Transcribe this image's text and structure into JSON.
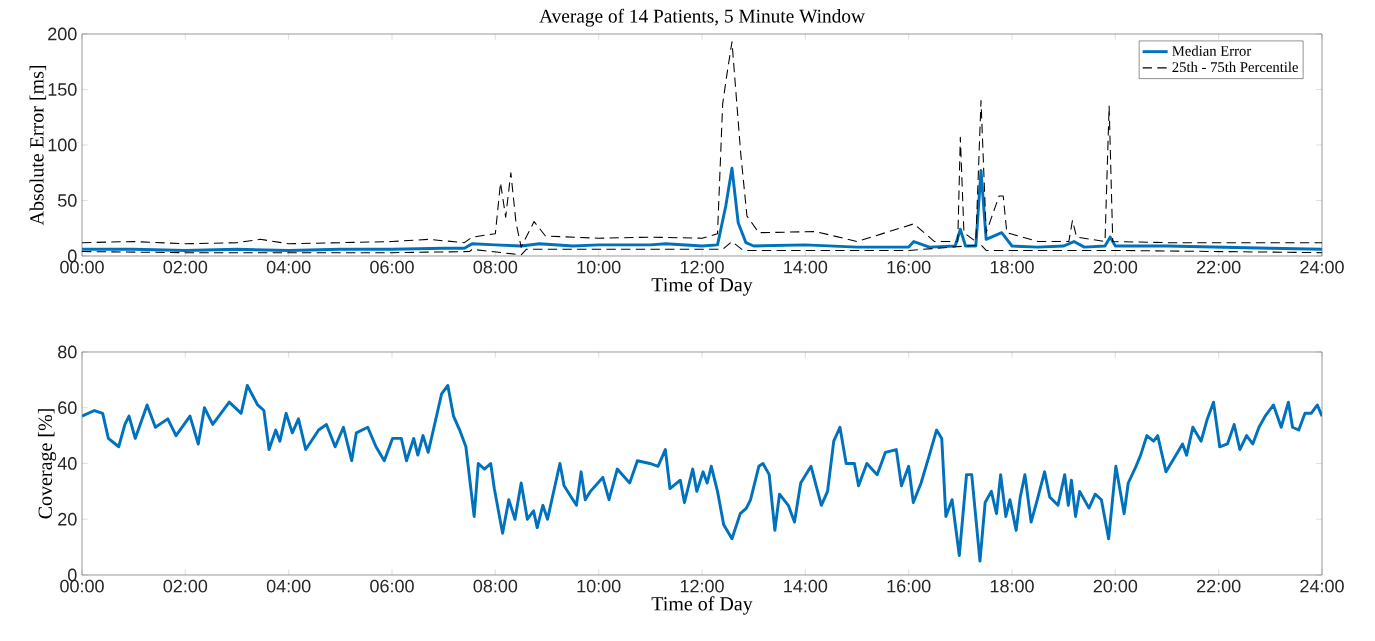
{
  "chart_data": [
    {
      "type": "line",
      "title": "Average of 14 Patients, 5 Minute Window",
      "xlabel": "Time of Day",
      "ylabel": "Absolute Error [ms]",
      "xlim": [
        0,
        24
      ],
      "ylim": [
        0,
        200
      ],
      "xticks": [
        {
          "value": 0,
          "label": "00:00"
        },
        {
          "value": 2,
          "label": "02:00"
        },
        {
          "value": 4,
          "label": "04:00"
        },
        {
          "value": 6,
          "label": "06:00"
        },
        {
          "value": 8,
          "label": "08:00"
        },
        {
          "value": 10,
          "label": "10:00"
        },
        {
          "value": 12,
          "label": "12:00"
        },
        {
          "value": 14,
          "label": "14:00"
        },
        {
          "value": 16,
          "label": "16:00"
        },
        {
          "value": 18,
          "label": "18:00"
        },
        {
          "value": 20,
          "label": "20:00"
        },
        {
          "value": 22,
          "label": "22:00"
        },
        {
          "value": 24,
          "label": "24:00"
        }
      ],
      "yticks": [
        0,
        50,
        100,
        150,
        200
      ],
      "legend": "top right",
      "series": [
        {
          "name": "Median Error",
          "color": "#0072bd",
          "line_style": "solid",
          "x": [
            0,
            1,
            2,
            3,
            4,
            5,
            6,
            7,
            7.4,
            7.55,
            8,
            8.5,
            8.85,
            9.5,
            10,
            11,
            11.3,
            12,
            12.3,
            12.46,
            12.58,
            12.7,
            12.85,
            13,
            14,
            15,
            16,
            16.1,
            16.4,
            16.9,
            17.0,
            17.1,
            17.3,
            17.4,
            17.5,
            17.8,
            18,
            18.5,
            19,
            19.2,
            19.4,
            19.8,
            19.9,
            20,
            21,
            22,
            23,
            24
          ],
          "values": [
            6,
            6,
            5,
            6,
            5,
            6,
            6,
            7,
            7,
            11,
            10,
            9,
            11,
            9,
            10,
            10,
            11,
            9,
            10,
            45,
            79,
            30,
            12,
            9,
            10,
            8,
            8,
            13,
            8,
            9,
            24,
            9,
            9,
            77,
            15,
            21,
            9,
            8,
            9,
            13,
            8,
            9,
            17,
            9,
            9,
            8,
            7,
            6
          ]
        },
        {
          "name": "25th - 75th Percentile",
          "color": "#000000",
          "line_style": "dashed",
          "x": [
            0,
            1,
            2,
            3,
            3.45,
            4,
            5,
            6,
            6.7,
            7.4,
            7.55,
            8.0,
            8.1,
            8.2,
            8.3,
            8.4,
            8.5,
            8.75,
            8.97,
            10,
            11,
            12,
            12.3,
            12.4,
            12.48,
            12.58,
            12.75,
            12.87,
            13.1,
            14.2,
            15,
            16.1,
            16.5,
            16.95,
            17.0,
            17.07,
            17.3,
            17.4,
            17.5,
            17.75,
            17.83,
            17.9,
            18.5,
            19.1,
            19.17,
            19.25,
            19.8,
            19.88,
            19.95,
            21,
            22,
            23,
            24
          ],
          "values": [
            12,
            13,
            11,
            12,
            15,
            11,
            12,
            13,
            15,
            12,
            17,
            20,
            66,
            35,
            75,
            30,
            8,
            31,
            18,
            16,
            17,
            16,
            20,
            137,
            163,
            193,
            92,
            36,
            21,
            22,
            13,
            29,
            13,
            13,
            107,
            21,
            13,
            140,
            21,
            54,
            54,
            21,
            13,
            13,
            32,
            17,
            13,
            135,
            13,
            12,
            12,
            12,
            12
          ]
        },
        {
          "color": "#000000",
          "line_style": "dashed",
          "x": [
            0,
            2,
            4,
            6,
            7.5,
            7.55,
            8.5,
            8.6,
            12.4,
            12.58,
            12.8,
            16,
            17.4,
            17.5,
            20,
            24
          ],
          "values": [
            4,
            3,
            3,
            3,
            4,
            6,
            1,
            6,
            6,
            13,
            5,
            5,
            10,
            5,
            5,
            3
          ]
        }
      ]
    },
    {
      "type": "line",
      "xlabel": "Time of Day",
      "ylabel": "Coverage [%]",
      "xlim": [
        0,
        24
      ],
      "ylim": [
        0,
        80
      ],
      "xticks": [
        {
          "value": 0,
          "label": "00:00"
        },
        {
          "value": 2,
          "label": "02:00"
        },
        {
          "value": 4,
          "label": "04:00"
        },
        {
          "value": 6,
          "label": "06:00"
        },
        {
          "value": 8,
          "label": "08:00"
        },
        {
          "value": 10,
          "label": "10:00"
        },
        {
          "value": 12,
          "label": "12:00"
        },
        {
          "value": 14,
          "label": "14:00"
        },
        {
          "value": 16,
          "label": "16:00"
        },
        {
          "value": 18,
          "label": "18:00"
        },
        {
          "value": 20,
          "label": "20:00"
        },
        {
          "value": 22,
          "label": "22:00"
        },
        {
          "value": 24,
          "label": "24:00"
        }
      ],
      "yticks": [
        0,
        20,
        40,
        60,
        80
      ],
      "series": [
        {
          "color": "#0072bd",
          "line_style": "solid",
          "x": [
            0,
            0.24,
            0.4,
            0.51,
            0.71,
            0.83,
            0.91,
            1.03,
            1.26,
            1.42,
            1.66,
            1.82,
            2.09,
            2.25,
            2.37,
            2.53,
            2.85,
            3.08,
            3.2,
            3.4,
            3.52,
            3.62,
            3.75,
            3.83,
            3.95,
            4.07,
            4.19,
            4.33,
            4.58,
            4.73,
            4.9,
            5.06,
            5.22,
            5.31,
            5.53,
            5.69,
            5.85,
            6.01,
            6.18,
            6.28,
            6.42,
            6.5,
            6.6,
            6.7,
            6.8,
            6.96,
            7.08,
            7.19,
            7.31,
            7.43,
            7.59,
            7.67,
            7.79,
            7.91,
            7.98,
            8.14,
            8.26,
            8.38,
            8.5,
            8.62,
            8.74,
            8.81,
            8.92,
            9.01,
            9.25,
            9.33,
            9.57,
            9.66,
            9.74,
            9.84,
            10.08,
            10.2,
            10.36,
            10.6,
            10.75,
            10.99,
            11.15,
            11.29,
            11.38,
            11.58,
            11.66,
            11.82,
            11.9,
            12.02,
            12.1,
            12.18,
            12.3,
            12.42,
            12.58,
            12.74,
            12.86,
            12.94,
            13.1,
            13.18,
            13.3,
            13.41,
            13.5,
            13.67,
            13.79,
            13.91,
            14.11,
            14.31,
            14.43,
            14.55,
            14.67,
            14.79,
            14.95,
            15.03,
            15.19,
            15.39,
            15.55,
            15.76,
            15.86,
            16.0,
            16.09,
            16.24,
            16.4,
            16.54,
            16.64,
            16.72,
            16.84,
            16.98,
            17.12,
            17.22,
            17.38,
            17.48,
            17.6,
            17.7,
            17.78,
            17.88,
            17.96,
            18.08,
            18.16,
            18.25,
            18.37,
            18.49,
            18.63,
            18.73,
            18.89,
            19.02,
            19.09,
            19.15,
            19.23,
            19.31,
            19.49,
            19.61,
            19.73,
            19.87,
            20.01,
            20.17,
            20.25,
            20.4,
            20.49,
            20.61,
            20.74,
            20.82,
            20.98,
            21.14,
            21.3,
            21.38,
            21.5,
            21.66,
            21.78,
            21.9,
            22.02,
            22.17,
            22.3,
            22.41,
            22.54,
            22.66,
            22.78,
            22.9,
            23.06,
            23.21,
            23.35,
            23.43,
            23.55,
            23.67,
            23.79,
            23.91,
            24.0
          ],
          "values": [
            57,
            59,
            58,
            49,
            46,
            54,
            57,
            49,
            61,
            53,
            56,
            50,
            57,
            47,
            60,
            54,
            62,
            58,
            68,
            61,
            59,
            45,
            52,
            48,
            58,
            51,
            56,
            45,
            52,
            54,
            46,
            53,
            41,
            51,
            53,
            46,
            41,
            49,
            49,
            41,
            49,
            43,
            50,
            44,
            52,
            65,
            68,
            57,
            52,
            46,
            21,
            40,
            38,
            40,
            31,
            15,
            27,
            20,
            33,
            20,
            23,
            17,
            25,
            20,
            40,
            32,
            25,
            37,
            27,
            30,
            35,
            27,
            38,
            33,
            41,
            40,
            39,
            45,
            31,
            34,
            26,
            38,
            30,
            37,
            33,
            39,
            30,
            18,
            13,
            22,
            24,
            27,
            39,
            40,
            36,
            16,
            29,
            25,
            19,
            33,
            39,
            25,
            30,
            48,
            53,
            40,
            40,
            32,
            40,
            36,
            44,
            45,
            32,
            39,
            26,
            33,
            43,
            52,
            49,
            21,
            27,
            7,
            36,
            36,
            5,
            26,
            30,
            22,
            36,
            21,
            27,
            16,
            28,
            36,
            19,
            27,
            37,
            28,
            25,
            36,
            25,
            34,
            21,
            30,
            24,
            29,
            27,
            13,
            39,
            22,
            33,
            39,
            43,
            50,
            48,
            50,
            37,
            42,
            47,
            43,
            53,
            48,
            56,
            62,
            46,
            47,
            54,
            45,
            50,
            47,
            53,
            57,
            61,
            53,
            62,
            53,
            52,
            58,
            58,
            61,
            57
          ]
        }
      ]
    }
  ]
}
